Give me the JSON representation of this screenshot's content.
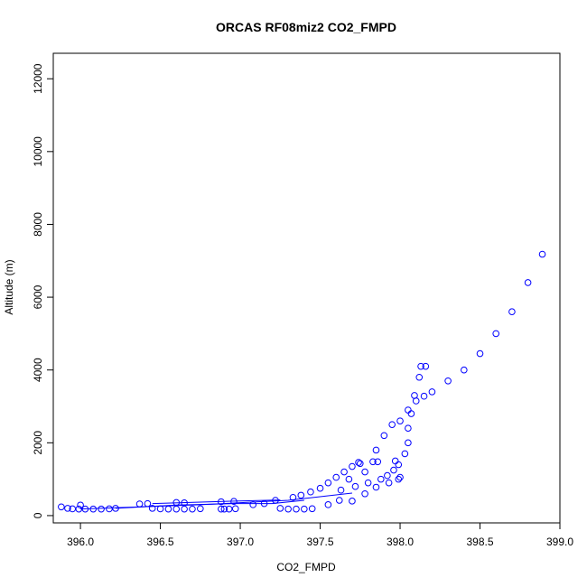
{
  "chart_data": {
    "type": "scatter",
    "title": "ORCAS RF08miz2 CO2_FMPD",
    "xlabel": "CO2_FMPD",
    "ylabel": "Altitude (m)",
    "xlim": [
      395.83,
      399.0
    ],
    "ylim": [
      -200,
      12700
    ],
    "x_ticks": [
      "396.0",
      "396.5",
      "397.0",
      "397.5",
      "398.0",
      "398.5",
      "399.0"
    ],
    "y_ticks": [
      "0",
      "2000",
      "4000",
      "6000",
      "8000",
      "10000",
      "12000"
    ],
    "marker": "open-circle",
    "color": "#0000ff",
    "grid": false,
    "legend": "none",
    "series": [
      {
        "points": [
          [
            395.88,
            240
          ],
          [
            395.92,
            200
          ],
          [
            395.95,
            185
          ],
          [
            395.99,
            180
          ],
          [
            396.03,
            180
          ],
          [
            396.08,
            180
          ],
          [
            396.13,
            180
          ],
          [
            396.18,
            185
          ],
          [
            396.22,
            200
          ],
          [
            396.0,
            290
          ],
          [
            396.37,
            320
          ],
          [
            396.42,
            330
          ],
          [
            396.45,
            200
          ],
          [
            396.5,
            185
          ],
          [
            396.55,
            180
          ],
          [
            396.6,
            180
          ],
          [
            396.65,
            180
          ],
          [
            396.7,
            180
          ],
          [
            396.75,
            190
          ],
          [
            396.6,
            360
          ],
          [
            396.65,
            350
          ],
          [
            396.88,
            180
          ],
          [
            396.9,
            180
          ],
          [
            396.93,
            180
          ],
          [
            396.97,
            190
          ],
          [
            396.96,
            390
          ],
          [
            396.88,
            380
          ],
          [
            397.08,
            300
          ],
          [
            397.15,
            330
          ],
          [
            397.22,
            420
          ],
          [
            397.25,
            200
          ],
          [
            397.3,
            180
          ],
          [
            397.35,
            180
          ],
          [
            397.4,
            180
          ],
          [
            397.45,
            190
          ],
          [
            397.33,
            500
          ],
          [
            397.38,
            560
          ],
          [
            397.44,
            650
          ],
          [
            397.5,
            750
          ],
          [
            397.55,
            900
          ],
          [
            397.6,
            1050
          ],
          [
            397.65,
            1200
          ],
          [
            397.7,
            1350
          ],
          [
            397.74,
            1460
          ],
          [
            397.75,
            1430
          ],
          [
            397.63,
            700
          ],
          [
            397.68,
            1000
          ],
          [
            397.72,
            800
          ],
          [
            397.78,
            1200
          ],
          [
            397.83,
            1480
          ],
          [
            397.86,
            1480
          ],
          [
            397.8,
            900
          ],
          [
            397.85,
            1800
          ],
          [
            397.9,
            2200
          ],
          [
            397.95,
            2500
          ],
          [
            398.0,
            2600
          ],
          [
            398.05,
            2900
          ],
          [
            398.1,
            3150
          ],
          [
            398.15,
            3280
          ],
          [
            398.2,
            3400
          ],
          [
            398.3,
            3700
          ],
          [
            398.4,
            4000
          ],
          [
            398.5,
            4450
          ],
          [
            398.6,
            5000
          ],
          [
            398.7,
            5600
          ],
          [
            398.8,
            6400
          ],
          [
            398.89,
            7180
          ],
          [
            397.88,
            1000
          ],
          [
            397.92,
            1100
          ],
          [
            397.96,
            1250
          ],
          [
            397.99,
            1400
          ],
          [
            398.03,
            1700
          ],
          [
            398.05,
            2000
          ],
          [
            398.05,
            2400
          ],
          [
            398.07,
            2800
          ],
          [
            398.09,
            3300
          ],
          [
            398.12,
            3800
          ],
          [
            398.13,
            4100
          ],
          [
            398.16,
            4100
          ],
          [
            397.97,
            1500
          ],
          [
            397.55,
            300
          ],
          [
            397.62,
            420
          ],
          [
            397.7,
            400
          ],
          [
            397.78,
            600
          ],
          [
            397.85,
            780
          ],
          [
            397.93,
            900
          ],
          [
            397.99,
            1000
          ],
          [
            398.0,
            1050
          ]
        ]
      }
    ],
    "connector_segments": [
      [
        [
          396.0,
          180
        ],
        [
          396.75,
          300
        ],
        [
          397.3,
          420
        ],
        [
          397.5,
          520
        ],
        [
          397.7,
          620
        ]
      ],
      [
        [
          396.22,
          200
        ],
        [
          396.6,
          290
        ],
        [
          396.96,
          330
        ],
        [
          397.2,
          330
        ],
        [
          397.4,
          420
        ]
      ],
      [
        [
          396.45,
          330
        ],
        [
          396.97,
          400
        ],
        [
          397.25,
          430
        ]
      ]
    ]
  }
}
